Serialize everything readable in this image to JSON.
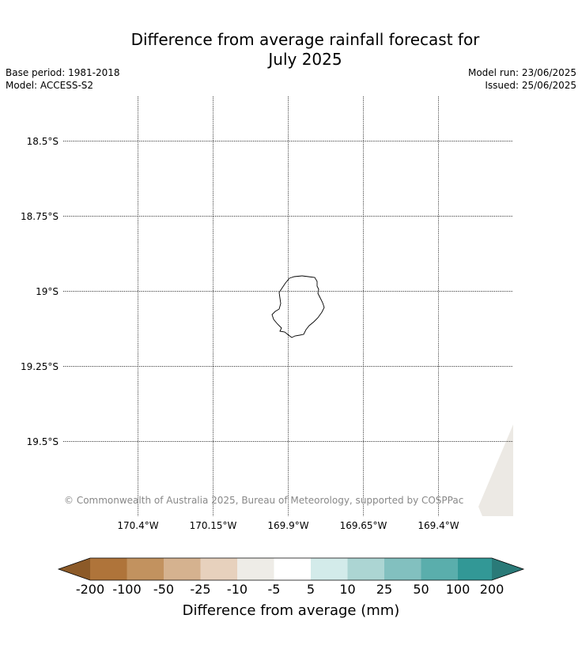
{
  "header": {
    "title_line1": "Difference from average rainfall forecast for",
    "title_line2": "July 2025",
    "base_period": "Base period: 1981-2018",
    "model": "Model: ACCESS-S2",
    "model_run": "Model run: 23/06/2025",
    "issued": "Issued: 25/06/2025"
  },
  "map": {
    "copyright": "© Commonwealth of Australia 2025, Bureau of Meteorology, supported by COSPPac",
    "lat_labels": [
      "18.5°S",
      "18.75°S",
      "19°S",
      "19.25°S",
      "19.5°S"
    ],
    "lon_labels": [
      "170.4°W",
      "170.15°W",
      "169.9°W",
      "169.65°W",
      "169.4°W"
    ],
    "land_color": "#ffffff",
    "forecast_fill_color": "#ece9e4",
    "coast_color": "#000000",
    "gridline_color": "#000000"
  },
  "colorbar": {
    "title": "Difference from average (mm)",
    "tick_labels": [
      "-200",
      "-100",
      "-50",
      "-25",
      "-10",
      "-5",
      "5",
      "10",
      "25",
      "50",
      "100",
      "200"
    ],
    "colors": [
      "#8c5a28",
      "#af743a",
      "#c2925f",
      "#d5b28f",
      "#e7d1bd",
      "#eeece7",
      "#ffffff",
      "#d3ebea",
      "#acd5d3",
      "#82c0bf",
      "#5aaeac",
      "#329896",
      "#2a7a78"
    ]
  }
}
